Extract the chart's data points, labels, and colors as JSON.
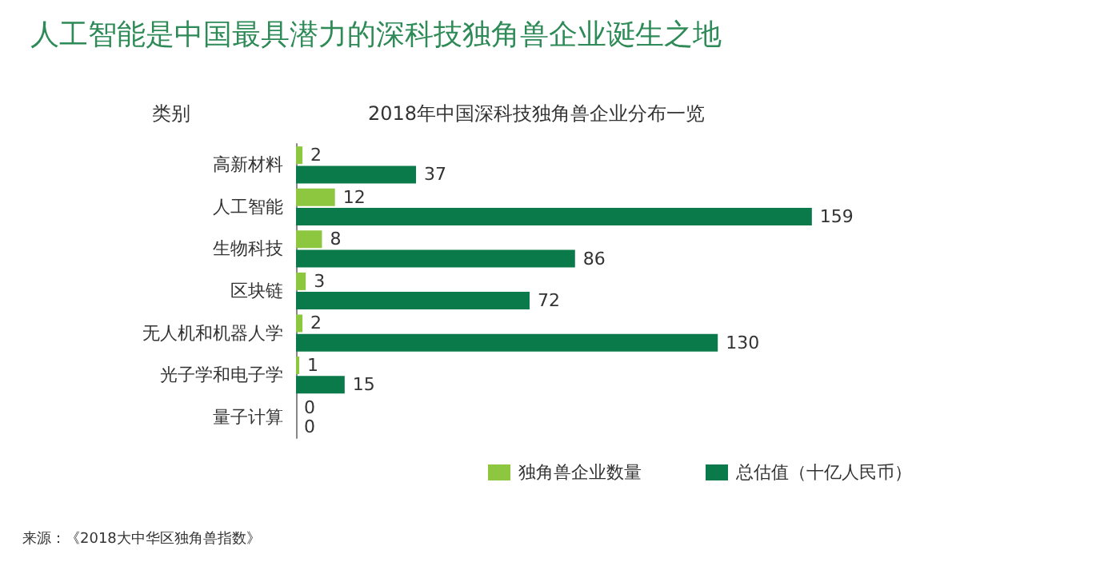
{
  "chart_data": {
    "type": "bar",
    "orientation": "horizontal",
    "title": "人工智能是中国最具潜力的深科技独角兽企业诞生之地",
    "subtitle": "2018年中国深科技独角兽企业分布一览",
    "ylabel": "类别",
    "categories": [
      "高新材料",
      "人工智能",
      "生物科技",
      "区块链",
      "无人机和机器人学",
      "光子学和电子学",
      "量子计算"
    ],
    "series": [
      {
        "name": "独角兽企业数量",
        "color": "#8dc63f",
        "values": [
          2,
          12,
          8,
          3,
          2,
          1,
          0
        ]
      },
      {
        "name": "总估值（十亿人民币）",
        "color": "#0b7a4b",
        "values": [
          37,
          159,
          86,
          72,
          130,
          15,
          0
        ]
      }
    ],
    "tick_labels": "y",
    "data_labels": true,
    "legend": "bottom",
    "annotations": [
      "来源：《2018大中华区独角兽指数》"
    ]
  }
}
